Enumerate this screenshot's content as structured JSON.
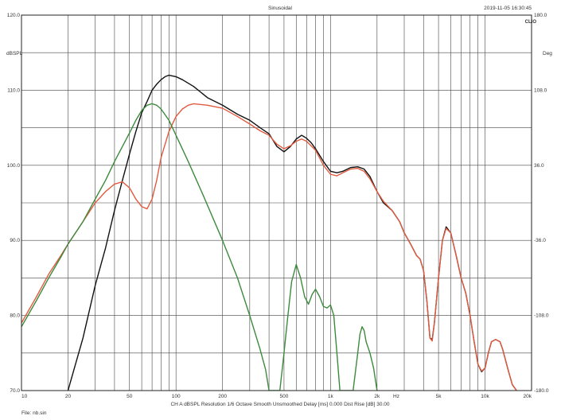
{
  "chart_data": {
    "type": "line",
    "title": "Sinusoidal",
    "timestamp": "2019-11-05 16:30:45",
    "brand": "CLIO",
    "ylabel_left": "dBSPL",
    "ylabel_right": "Deg",
    "x_unit_label": "Hz",
    "x_scale": "log",
    "xlim": [
      10,
      20000
    ],
    "ylim": [
      70,
      120
    ],
    "y_ticks": [
      "70.0",
      "80.0",
      "90.0",
      "100.0",
      "110.0",
      "120.0"
    ],
    "y_right_ticks": [
      "-180.0",
      "-108.0",
      "-36.0",
      "36.0",
      "108.0",
      "180.0"
    ],
    "x_ticks": [
      {
        "value": 10,
        "label": "10"
      },
      {
        "value": 20,
        "label": "20"
      },
      {
        "value": 50,
        "label": "50"
      },
      {
        "value": 100,
        "label": "100"
      },
      {
        "value": 200,
        "label": "200"
      },
      {
        "value": 500,
        "label": "500"
      },
      {
        "value": 1000,
        "label": "1k"
      },
      {
        "value": 2000,
        "label": "2k"
      },
      {
        "value": 5000,
        "label": "5k"
      },
      {
        "value": 10000,
        "label": "10k"
      },
      {
        "value": 20000,
        "label": "20k"
      }
    ],
    "grid": true,
    "footer_info": "CH A   dBSPL   Resolution 1/6 Octave   Smooth Unsmoothed   Delay [ms] 0.000   Dist Rise [dB] 30.00",
    "file_label": "File: nb.sin",
    "series": [
      {
        "color": "#111111",
        "points": [
          [
            20,
            70
          ],
          [
            22,
            73
          ],
          [
            25,
            77
          ],
          [
            30,
            84
          ],
          [
            35,
            89
          ],
          [
            40,
            94
          ],
          [
            45,
            98
          ],
          [
            50,
            101.5
          ],
          [
            55,
            104.5
          ],
          [
            60,
            107
          ],
          [
            65,
            108.5
          ],
          [
            70,
            110
          ],
          [
            75,
            110.8
          ],
          [
            80,
            111.4
          ],
          [
            85,
            111.8
          ],
          [
            90,
            112
          ],
          [
            100,
            111.8
          ],
          [
            110,
            111.4
          ],
          [
            130,
            110.5
          ],
          [
            160,
            109
          ],
          [
            200,
            108
          ],
          [
            250,
            106.8
          ],
          [
            300,
            106
          ],
          [
            350,
            105
          ],
          [
            400,
            104.2
          ],
          [
            450,
            102.5
          ],
          [
            500,
            101.8
          ],
          [
            550,
            102.5
          ],
          [
            600,
            103.5
          ],
          [
            650,
            104
          ],
          [
            700,
            103.6
          ],
          [
            750,
            103
          ],
          [
            800,
            102.2
          ],
          [
            900,
            100.5
          ],
          [
            1000,
            99.2
          ],
          [
            1100,
            99
          ],
          [
            1200,
            99.2
          ],
          [
            1350,
            99.7
          ],
          [
            1500,
            99.8
          ],
          [
            1650,
            99.5
          ],
          [
            1800,
            98.5
          ],
          [
            2000,
            96.5
          ],
          [
            2200,
            95
          ],
          [
            2500,
            94
          ],
          [
            2800,
            92.5
          ],
          [
            3000,
            91
          ],
          [
            3300,
            89.5
          ],
          [
            3600,
            88
          ],
          [
            3800,
            87.5
          ],
          [
            4000,
            86
          ],
          [
            4200,
            82
          ],
          [
            4400,
            77
          ],
          [
            4550,
            76.8
          ],
          [
            4700,
            79
          ],
          [
            5000,
            85
          ],
          [
            5300,
            90
          ],
          [
            5600,
            91.8
          ],
          [
            6000,
            91
          ],
          [
            6500,
            88
          ],
          [
            7000,
            85
          ],
          [
            7500,
            83
          ],
          [
            8000,
            80
          ],
          [
            8500,
            76.5
          ],
          [
            9000,
            73.5
          ],
          [
            9500,
            72.5
          ],
          [
            10000,
            73
          ],
          [
            10500,
            75
          ],
          [
            11000,
            76.5
          ],
          [
            11700,
            76.8
          ],
          [
            12500,
            76.5
          ],
          [
            13000,
            75.5
          ],
          [
            14000,
            73
          ],
          [
            15000,
            70.8
          ],
          [
            16000,
            70
          ]
        ]
      },
      {
        "color": "#e15b3f",
        "points": [
          [
            10,
            79
          ],
          [
            11,
            80.5
          ],
          [
            12.5,
            82.5
          ],
          [
            15,
            85.5
          ],
          [
            18,
            88
          ],
          [
            20,
            89.5
          ],
          [
            25,
            92.5
          ],
          [
            30,
            95
          ],
          [
            35,
            96.5
          ],
          [
            40,
            97.5
          ],
          [
            45,
            97.8
          ],
          [
            50,
            97
          ],
          [
            55,
            95.5
          ],
          [
            60,
            94.5
          ],
          [
            65,
            94.2
          ],
          [
            70,
            95.5
          ],
          [
            75,
            98
          ],
          [
            80,
            101
          ],
          [
            90,
            104.5
          ],
          [
            100,
            106.5
          ],
          [
            110,
            107.5
          ],
          [
            120,
            108
          ],
          [
            130,
            108.2
          ],
          [
            160,
            108
          ],
          [
            200,
            107.6
          ],
          [
            250,
            106.5
          ],
          [
            300,
            105.5
          ],
          [
            350,
            104.6
          ],
          [
            400,
            104
          ],
          [
            450,
            102.8
          ],
          [
            500,
            102.2
          ],
          [
            550,
            102.6
          ],
          [
            600,
            103.2
          ],
          [
            650,
            103.5
          ],
          [
            700,
            103.2
          ],
          [
            800,
            102
          ],
          [
            900,
            100
          ],
          [
            1000,
            98.8
          ],
          [
            1100,
            98.6
          ],
          [
            1200,
            99
          ],
          [
            1350,
            99.5
          ],
          [
            1500,
            99.6
          ],
          [
            1650,
            99.2
          ],
          [
            1800,
            98.2
          ],
          [
            2000,
            96.5
          ],
          [
            2200,
            95.2
          ],
          [
            2500,
            94
          ],
          [
            2800,
            92.5
          ],
          [
            3000,
            91
          ],
          [
            3300,
            89.5
          ],
          [
            3600,
            88
          ],
          [
            3800,
            87.5
          ],
          [
            4000,
            86
          ],
          [
            4200,
            82
          ],
          [
            4400,
            77
          ],
          [
            4550,
            76.6
          ],
          [
            4700,
            79
          ],
          [
            5000,
            85
          ],
          [
            5300,
            90
          ],
          [
            5600,
            91.6
          ],
          [
            6000,
            91
          ],
          [
            6500,
            88
          ],
          [
            7000,
            85
          ],
          [
            7500,
            83
          ],
          [
            8000,
            80
          ],
          [
            8500,
            76.5
          ],
          [
            9000,
            73.5
          ],
          [
            9500,
            72.6
          ],
          [
            10000,
            73
          ],
          [
            10500,
            75
          ],
          [
            11000,
            76.5
          ],
          [
            11700,
            76.8
          ],
          [
            12500,
            76.5
          ],
          [
            13000,
            75.5
          ],
          [
            14000,
            73
          ],
          [
            15000,
            70.8
          ],
          [
            16000,
            70
          ]
        ]
      },
      {
        "color": "#3d8a3d",
        "points": [
          [
            10,
            78.5
          ],
          [
            11,
            80
          ],
          [
            12.5,
            82
          ],
          [
            15,
            85
          ],
          [
            18,
            87.8
          ],
          [
            20,
            89.5
          ],
          [
            25,
            92.5
          ],
          [
            30,
            95.5
          ],
          [
            35,
            98
          ],
          [
            40,
            100.5
          ],
          [
            45,
            102.5
          ],
          [
            50,
            104.3
          ],
          [
            55,
            106
          ],
          [
            60,
            107.3
          ],
          [
            65,
            108
          ],
          [
            70,
            108.2
          ],
          [
            75,
            108
          ],
          [
            80,
            107.5
          ],
          [
            90,
            106
          ],
          [
            100,
            104
          ],
          [
            120,
            100.5
          ],
          [
            150,
            96
          ],
          [
            200,
            90
          ],
          [
            250,
            85
          ],
          [
            300,
            80
          ],
          [
            350,
            75.5
          ],
          [
            380,
            72.8
          ],
          [
            400,
            70
          ],
          [
            470,
            70
          ],
          [
            500,
            75
          ],
          [
            530,
            80
          ],
          [
            560,
            84.5
          ],
          [
            600,
            86.8
          ],
          [
            640,
            85
          ],
          [
            680,
            82.5
          ],
          [
            720,
            81.5
          ],
          [
            760,
            82.8
          ],
          [
            800,
            83.5
          ],
          [
            850,
            82.5
          ],
          [
            900,
            81.2
          ],
          [
            950,
            81
          ],
          [
            1000,
            81.4
          ],
          [
            1050,
            80
          ],
          [
            1100,
            75
          ],
          [
            1150,
            70
          ],
          [
            1400,
            70
          ],
          [
            1500,
            75
          ],
          [
            1550,
            77.5
          ],
          [
            1600,
            78.5
          ],
          [
            1650,
            78
          ],
          [
            1700,
            76.5
          ],
          [
            1800,
            75
          ],
          [
            1900,
            73
          ],
          [
            2000,
            70
          ]
        ]
      }
    ]
  }
}
